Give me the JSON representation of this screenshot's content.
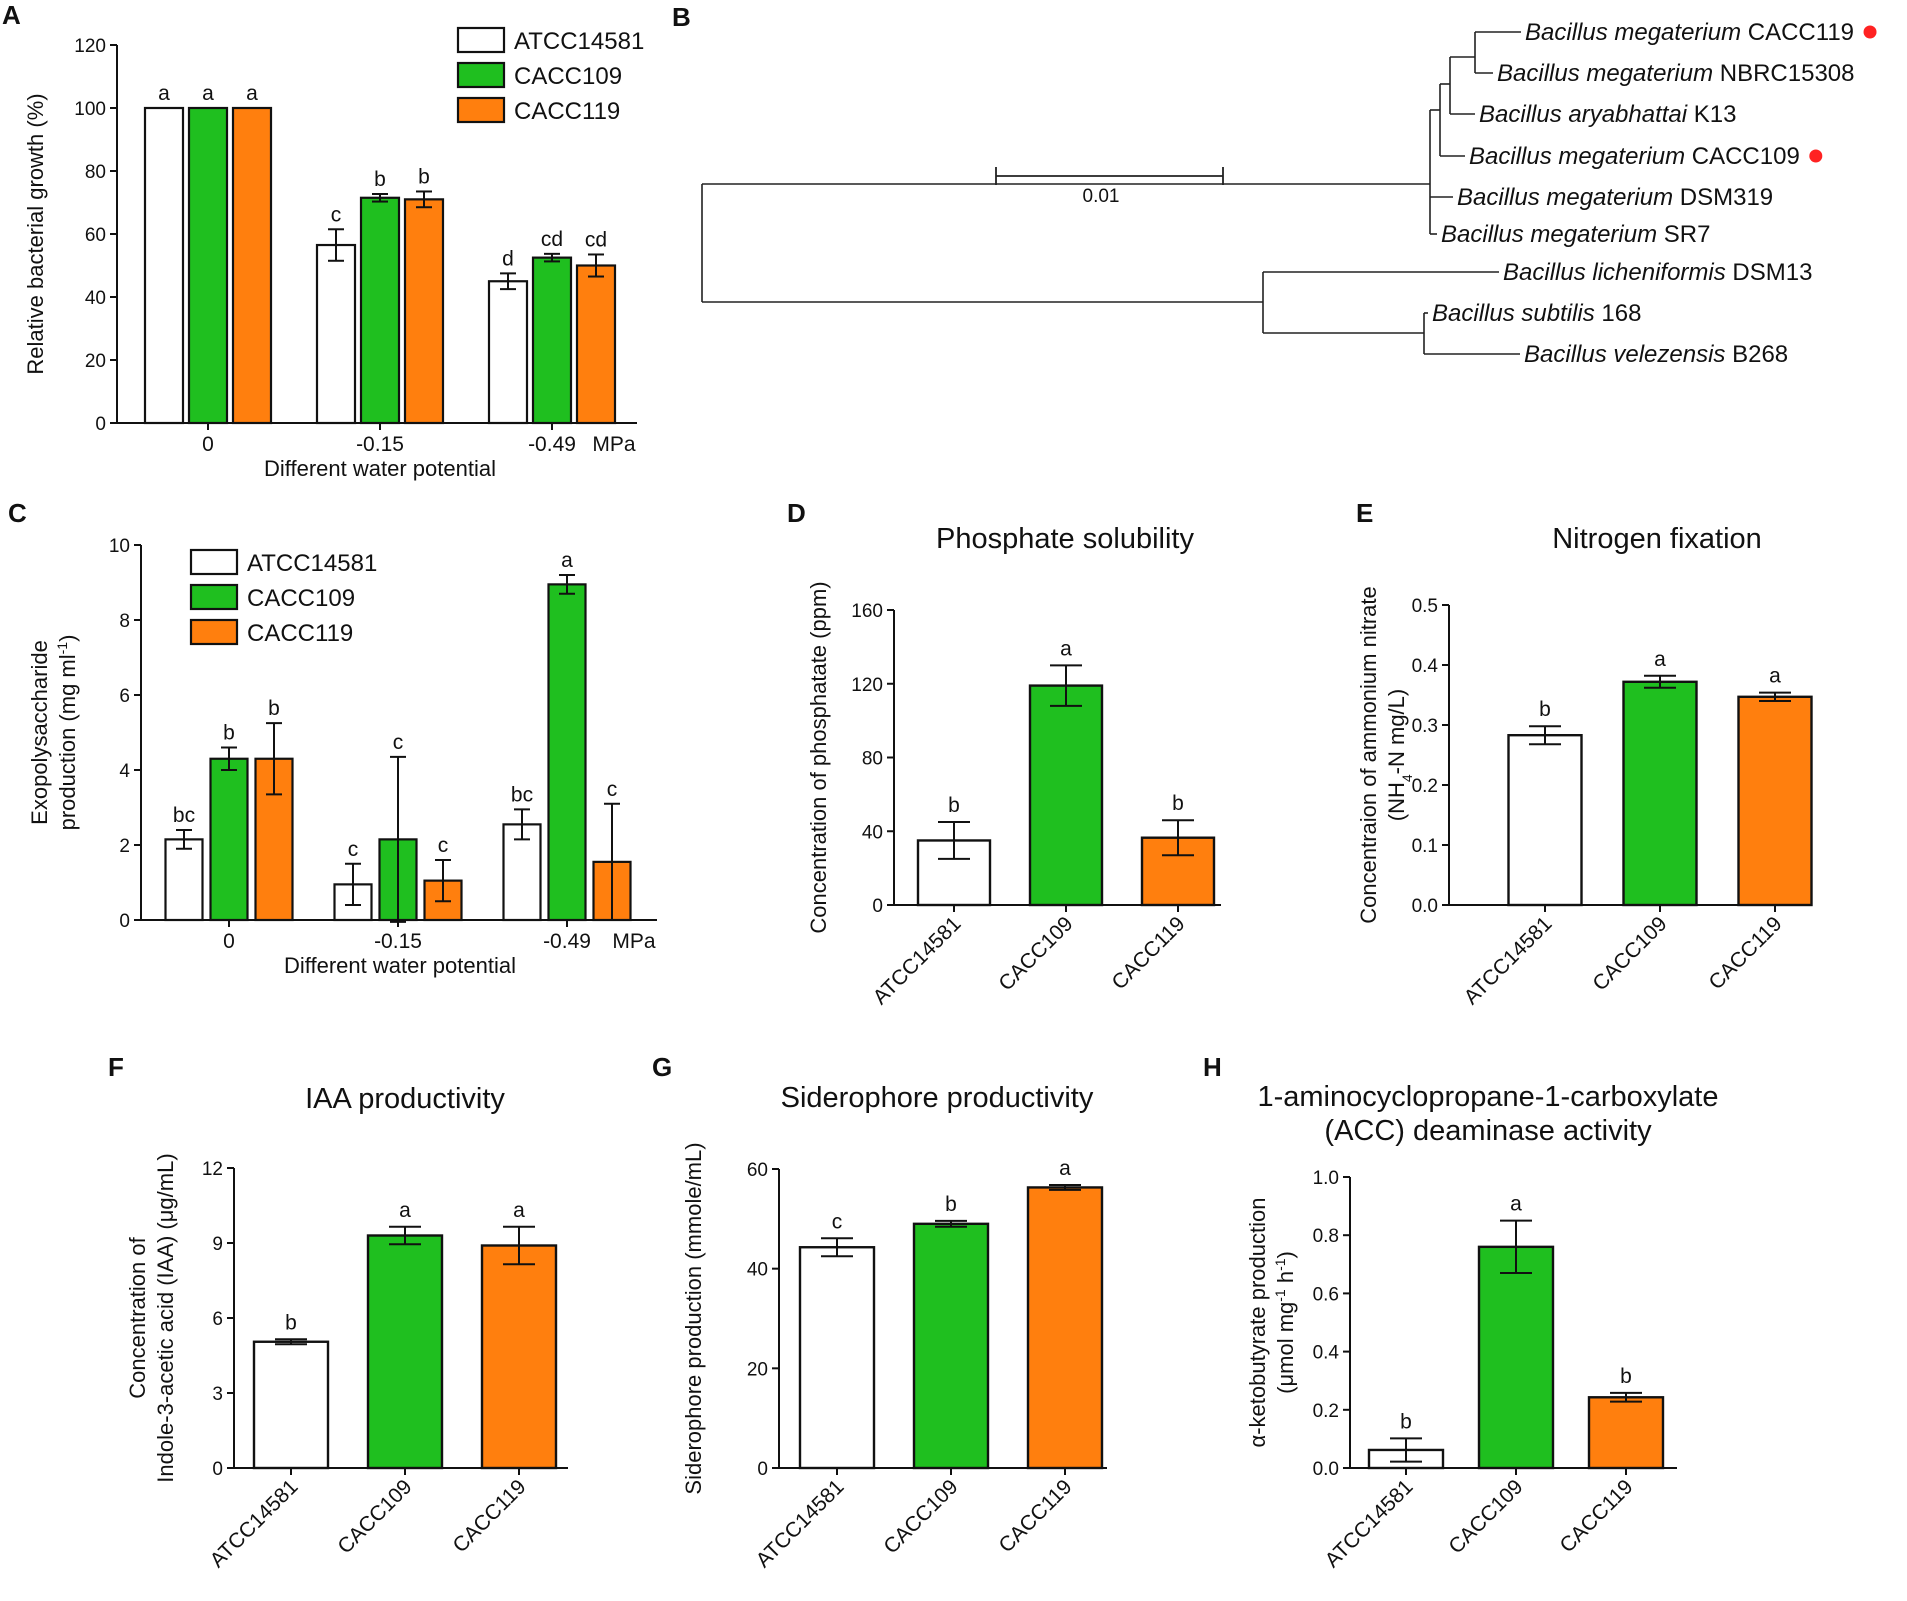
{
  "panels": {
    "A": "A",
    "B": "B",
    "C": "C",
    "D": "D",
    "E": "E",
    "F": "F",
    "G": "G",
    "H": "H"
  },
  "legend": {
    "strains": [
      "ATCC14581",
      "CACC109",
      "CACC119"
    ],
    "colors": [
      "#ffffff",
      "#1fbf1f",
      "#ff7f0e"
    ]
  },
  "tree": {
    "scale_label": "0.01",
    "taxa": [
      {
        "genus": "Bacillus megaterium",
        "strain": "CACC119",
        "marked": true
      },
      {
        "genus": "Bacillus megaterium",
        "strain": "NBRC15308",
        "marked": false
      },
      {
        "genus": "Bacillus aryabhattai",
        "strain": "K13",
        "marked": false
      },
      {
        "genus": "Bacillus megaterium",
        "strain": "CACC109",
        "marked": true
      },
      {
        "genus": "Bacillus megaterium",
        "strain": "DSM319",
        "marked": false
      },
      {
        "genus": "Bacillus megaterium",
        "strain": "SR7",
        "marked": false
      },
      {
        "genus": "Bacillus licheniformis",
        "strain": "DSM13",
        "marked": false
      },
      {
        "genus": "Bacillus subtilis",
        "strain": "168",
        "marked": false
      },
      {
        "genus": "Bacillus velezensis",
        "strain": "B268",
        "marked": false
      }
    ],
    "marker_color": "#ff2222"
  },
  "chart_data": [
    {
      "panel": "A",
      "type": "bar",
      "title": "",
      "categories": [
        "0",
        "-0.15",
        "-0.49"
      ],
      "unit_label": "MPa",
      "xlabel": "Different water potential",
      "ylabel": "Relative bacterial growth (%)",
      "ylim": [
        0,
        120
      ],
      "yticks": [
        0,
        20,
        40,
        60,
        80,
        100,
        120
      ],
      "series": [
        {
          "name": "ATCC14581",
          "values": [
            100,
            56.5,
            45
          ],
          "errors": [
            0,
            5,
            2.5
          ],
          "letters": [
            "a",
            "c",
            "d"
          ]
        },
        {
          "name": "CACC109",
          "values": [
            100,
            71.5,
            52.5
          ],
          "errors": [
            0,
            1.2,
            1.2
          ],
          "letters": [
            "a",
            "b",
            "cd"
          ]
        },
        {
          "name": "CACC119",
          "values": [
            100,
            71,
            50
          ],
          "errors": [
            0,
            2.5,
            3.5
          ],
          "letters": [
            "a",
            "b",
            "cd"
          ]
        }
      ]
    },
    {
      "panel": "C",
      "type": "bar",
      "title": "",
      "categories": [
        "0",
        "-0.15",
        "-0.49"
      ],
      "unit_label": "MPa",
      "xlabel": "Different water potential",
      "ylabel": "Exopolysaccharide",
      "ylabel2": "production (mg ml",
      "ylabel2_sup": "-1",
      "ylabel2_end": ")",
      "ylim": [
        0,
        10
      ],
      "yticks": [
        0,
        2,
        4,
        6,
        8,
        10
      ],
      "series": [
        {
          "name": "ATCC14581",
          "values": [
            2.15,
            0.95,
            2.55
          ],
          "errors": [
            0.25,
            0.55,
            0.4
          ],
          "letters": [
            "bc",
            "c",
            "bc"
          ]
        },
        {
          "name": "CACC109",
          "values": [
            4.3,
            2.15,
            8.95
          ],
          "errors": [
            0.3,
            2.2,
            0.25
          ],
          "letters": [
            "b",
            "c",
            "a"
          ]
        },
        {
          "name": "CACC119",
          "values": [
            4.3,
            1.05,
            1.55
          ],
          "errors": [
            0.95,
            0.55,
            1.55
          ],
          "letters": [
            "b",
            "c",
            "c"
          ]
        }
      ]
    },
    {
      "panel": "D",
      "type": "bar",
      "title": "Phosphate solubility",
      "categories": [
        "ATCC14581",
        "CACC109",
        "CACC119"
      ],
      "ylabel": "Concentration of phosphatate (ppm)",
      "ylim": [
        0,
        160
      ],
      "yticks": [
        0,
        40,
        80,
        120,
        160
      ],
      "values": [
        35,
        119,
        36.5
      ],
      "errors": [
        10,
        11,
        9.5
      ],
      "letters": [
        "b",
        "a",
        "b"
      ]
    },
    {
      "panel": "E",
      "type": "bar",
      "title": "Nitrogen fixation",
      "categories": [
        "ATCC14581",
        "CACC109",
        "CACC119"
      ],
      "ylabel": "Concentraion of ammonium nitrate",
      "ylabel2": "(NH",
      "ylabel2_sub": "4",
      "ylabel2_end": "-N mg/L)",
      "ylim": [
        0,
        0.5
      ],
      "yticks": [
        0.0,
        0.1,
        0.2,
        0.3,
        0.4,
        0.5
      ],
      "tickdec": 1,
      "values": [
        0.283,
        0.372,
        0.347
      ],
      "errors": [
        0.015,
        0.01,
        0.007
      ],
      "letters": [
        "b",
        "a",
        "a"
      ]
    },
    {
      "panel": "F",
      "type": "bar",
      "title": "IAA productivity",
      "categories": [
        "ATCC14581",
        "CACC109",
        "CACC119"
      ],
      "ylabel": "Concentration of",
      "ylabel2": "Indole-3-acetic acid (IAA) (μg/mL)",
      "ylim": [
        0,
        12
      ],
      "yticks": [
        0,
        3,
        6,
        9,
        12
      ],
      "values": [
        5.05,
        9.3,
        8.9
      ],
      "errors": [
        0.1,
        0.35,
        0.75
      ],
      "letters": [
        "b",
        "a",
        "a"
      ]
    },
    {
      "panel": "G",
      "type": "bar",
      "title": "Siderophore productivity",
      "categories": [
        "ATCC14581",
        "CACC109",
        "CACC119"
      ],
      "ylabel": "Siderophore production (mmole/mL)",
      "ylim": [
        0,
        60
      ],
      "yticks": [
        0,
        20,
        40,
        60
      ],
      "values": [
        44.3,
        49,
        56.3
      ],
      "errors": [
        1.8,
        0.6,
        0.5
      ],
      "letters": [
        "c",
        "b",
        "a"
      ]
    },
    {
      "panel": "H",
      "type": "bar",
      "title": "1-aminocyclopropane-1-carboxylate",
      "title2": "(ACC) deaminase activity",
      "categories": [
        "ATCC14581",
        "CACC109",
        "CACC119"
      ],
      "ylabel": "α-ketobutyrate production",
      "ylabel2": "(μmol mg",
      "ylabel2_sup": "-1",
      "ylabel2_mid": " h",
      "ylabel2_sup2": "-1",
      "ylabel2_end": ")",
      "ylim": [
        0,
        1.0
      ],
      "yticks": [
        0.0,
        0.2,
        0.4,
        0.6,
        0.8,
        1.0
      ],
      "tickdec": 1,
      "values": [
        0.062,
        0.76,
        0.243
      ],
      "errors": [
        0.04,
        0.09,
        0.015
      ],
      "letters": [
        "b",
        "a",
        "b"
      ]
    }
  ]
}
